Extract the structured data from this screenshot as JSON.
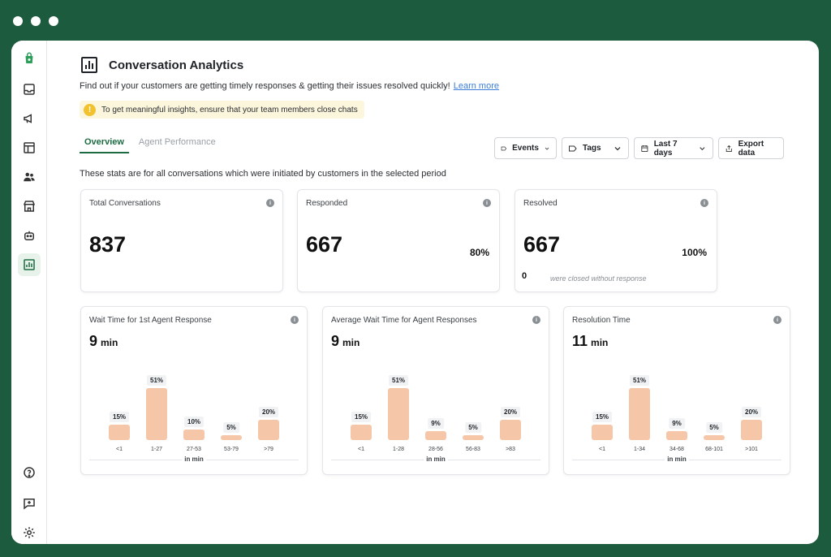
{
  "sidebar": {
    "items": [
      {
        "name": "logo-icon",
        "active": false
      },
      {
        "name": "inbox-icon",
        "active": false
      },
      {
        "name": "megaphone-icon",
        "active": false
      },
      {
        "name": "layout-icon",
        "active": false
      },
      {
        "name": "contacts-icon",
        "active": false
      },
      {
        "name": "store-icon",
        "active": false
      },
      {
        "name": "bot-icon",
        "active": false
      },
      {
        "name": "analytics-icon",
        "active": true
      }
    ],
    "bottom_items": [
      {
        "name": "help-icon"
      },
      {
        "name": "feedback-icon"
      },
      {
        "name": "settings-icon"
      }
    ]
  },
  "header": {
    "title": "Conversation Analytics",
    "subtitle": "Find out if your customers are getting timely responses & getting their issues resolved quickly!",
    "learn_more": "Learn more",
    "banner": "To get meaningful insights, ensure that your team members close chats",
    "banner_icon": "!"
  },
  "tabs": [
    {
      "label": "Overview",
      "active": true
    },
    {
      "label": "Agent Performance",
      "active": false
    }
  ],
  "filters": {
    "events": "Events",
    "tags": "Tags",
    "date": "Last 7 days",
    "export": "Export data"
  },
  "stats_note": "These stats are for all conversations which were initiated by customers in the selected period",
  "summary": {
    "total": {
      "label": "Total Conversations",
      "value": "837"
    },
    "responded": {
      "label": "Responded",
      "value": "667",
      "pct": "80%"
    },
    "resolved": {
      "label": "Resolved",
      "value": "667",
      "pct": "100%",
      "zero": "0",
      "note": "were closed without response"
    }
  },
  "info_glyph": "i",
  "accent_color": "#1d6b43",
  "bar_color": "#f5c6a8",
  "chart_data": [
    {
      "type": "bar",
      "title": "Wait Time for 1st Agent Response",
      "value": "9",
      "unit": "min",
      "categories": [
        "<1",
        "1-27",
        "27-53",
        "53-79",
        ">79"
      ],
      "values": [
        15,
        51,
        10,
        5,
        20
      ],
      "labels": [
        "15%",
        "51%",
        "10%",
        "5%",
        "20%"
      ],
      "xlabel": "in min"
    },
    {
      "type": "bar",
      "title": "Average Wait Time for Agent Responses",
      "value": "9",
      "unit": "min",
      "categories": [
        "<1",
        "1-28",
        "28-56",
        "56-83",
        ">83"
      ],
      "values": [
        15,
        51,
        9,
        5,
        20
      ],
      "labels": [
        "15%",
        "51%",
        "9%",
        "5%",
        "20%"
      ],
      "xlabel": "in min"
    },
    {
      "type": "bar",
      "title": "Resolution Time",
      "value": "11",
      "unit": "min",
      "categories": [
        "<1",
        "1-34",
        "34-68",
        "68-101",
        ">101"
      ],
      "values": [
        15,
        51,
        9,
        5,
        20
      ],
      "labels": [
        "15%",
        "51%",
        "9%",
        "5%",
        "20%"
      ],
      "xlabel": "in min"
    }
  ]
}
